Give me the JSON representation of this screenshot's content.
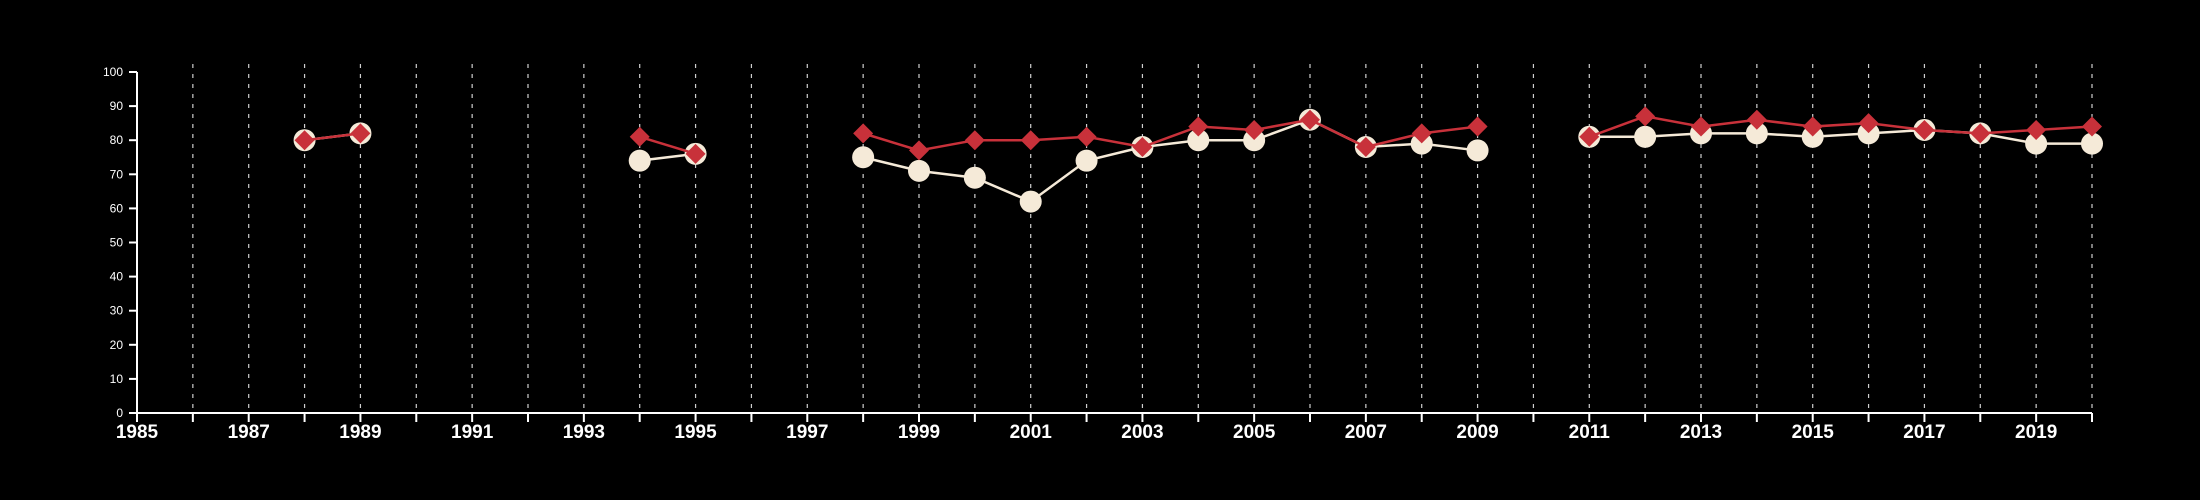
{
  "colors": {
    "background": "#000000",
    "axis": "#ffffff",
    "grid": "#cfcfcf",
    "series_light": "#f5ead8",
    "series_red": "#c8313a"
  },
  "chart_data": {
    "type": "line",
    "title": "",
    "xlabel": "",
    "ylabel": "",
    "xlim": [
      1985,
      2020
    ],
    "ylim": [
      0,
      100
    ],
    "x_ticks": [
      "1985",
      "1987",
      "1989",
      "1991",
      "1993",
      "1995",
      "1997",
      "1999",
      "2001",
      "2003",
      "2005",
      "2007",
      "2009",
      "2011",
      "2013",
      "2015",
      "2017",
      "2019"
    ],
    "y_ticks": [
      "0",
      "10",
      "20",
      "30",
      "40",
      "50",
      "60",
      "70",
      "80",
      "90",
      "100"
    ],
    "grid": "vertical dashed lines at every year",
    "legend": "none",
    "series": [
      {
        "marker": "circle",
        "color": "#f5ead8",
        "points": [
          [
            1988,
            80
          ],
          [
            1989,
            82
          ],
          [
            null,
            null
          ],
          [
            1994,
            74
          ],
          [
            1995,
            76
          ],
          [
            null,
            null
          ],
          [
            1998,
            75
          ],
          [
            1999,
            71
          ],
          [
            2000,
            69
          ],
          [
            2001,
            62
          ],
          [
            2002,
            74
          ],
          [
            2003,
            78
          ],
          [
            2004,
            80
          ],
          [
            2005,
            80
          ],
          [
            2006,
            86
          ],
          [
            2007,
            78
          ],
          [
            2008,
            79
          ],
          [
            2009,
            77
          ],
          [
            null,
            null
          ],
          [
            2011,
            81
          ],
          [
            2012,
            81
          ],
          [
            2013,
            82
          ],
          [
            2014,
            82
          ],
          [
            2015,
            81
          ],
          [
            2016,
            82
          ],
          [
            2017,
            83
          ],
          [
            2018,
            82
          ],
          [
            2019,
            79
          ],
          [
            2020,
            79
          ]
        ]
      },
      {
        "marker": "diamond",
        "color": "#c8313a",
        "points": [
          [
            1988,
            80
          ],
          [
            1989,
            82
          ],
          [
            null,
            null
          ],
          [
            1994,
            81
          ],
          [
            1995,
            76
          ],
          [
            null,
            null
          ],
          [
            1998,
            82
          ],
          [
            1999,
            77
          ],
          [
            2000,
            80
          ],
          [
            2001,
            80
          ],
          [
            2002,
            81
          ],
          [
            2003,
            78
          ],
          [
            2004,
            84
          ],
          [
            2005,
            83
          ],
          [
            2006,
            86
          ],
          [
            2007,
            78
          ],
          [
            2008,
            82
          ],
          [
            2009,
            84
          ],
          [
            null,
            null
          ],
          [
            2011,
            81
          ],
          [
            2012,
            87
          ],
          [
            2013,
            84
          ],
          [
            2014,
            86
          ],
          [
            2015,
            84
          ],
          [
            2016,
            85
          ],
          [
            2017,
            83
          ],
          [
            2018,
            82
          ],
          [
            2019,
            83
          ],
          [
            2020,
            84
          ]
        ]
      }
    ]
  }
}
